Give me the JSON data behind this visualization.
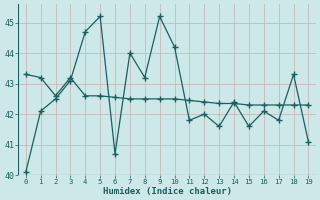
{
  "x": [
    0,
    1,
    2,
    3,
    4,
    5,
    6,
    7,
    8,
    9,
    10,
    11,
    12,
    13,
    14,
    15,
    16,
    17,
    18,
    19
  ],
  "y_main": [
    40.1,
    42.1,
    42.5,
    43.1,
    44.7,
    45.2,
    40.7,
    44.0,
    43.2,
    45.2,
    44.2,
    41.8,
    42.0,
    41.6,
    42.4,
    41.6,
    42.1,
    41.8,
    43.3,
    41.1
  ],
  "y_trend": [
    43.3,
    43.2,
    42.6,
    43.2,
    42.6,
    42.6,
    42.55,
    42.5,
    42.5,
    42.5,
    42.5,
    42.45,
    42.4,
    42.35,
    42.35,
    42.3,
    42.3,
    42.3,
    42.3,
    42.3
  ],
  "line_color": "#1a5f5f",
  "bg_color": "#cce8e8",
  "grid_color_major": "#b0d4d4",
  "grid_color_minor": "#d8ecec",
  "xlabel": "Humidex (Indice chaleur)",
  "ylim": [
    40.0,
    45.6
  ],
  "xlim": [
    -0.5,
    19.5
  ],
  "yticks": [
    40,
    41,
    42,
    43,
    44,
    45
  ],
  "xticks": [
    0,
    1,
    2,
    3,
    4,
    5,
    6,
    7,
    8,
    9,
    10,
    11,
    12,
    13,
    14,
    15,
    16,
    17,
    18,
    19
  ]
}
